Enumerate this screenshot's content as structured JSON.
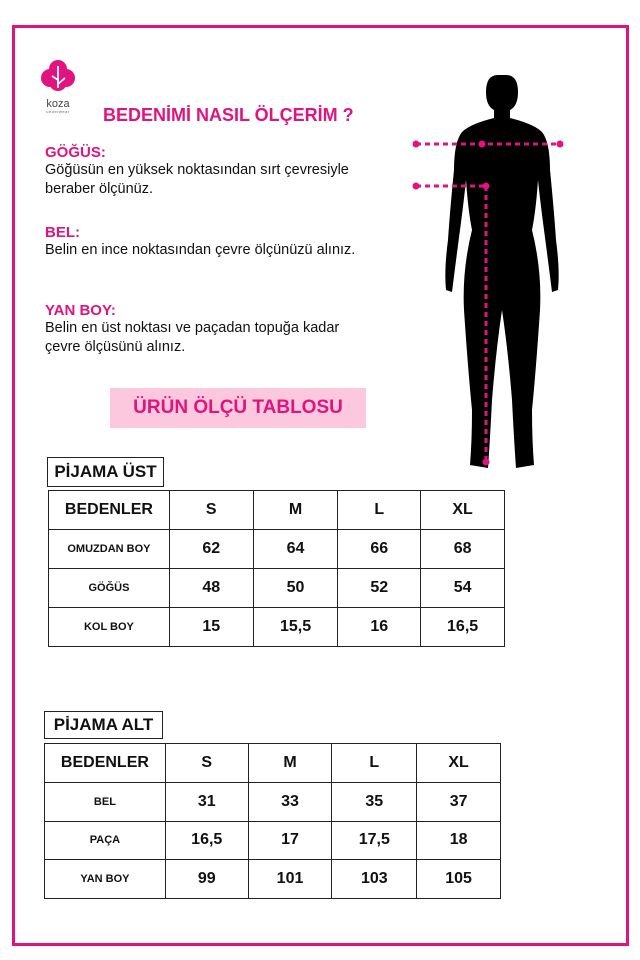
{
  "brand": {
    "name": "koza",
    "tagline": "underwear",
    "color": "#e0137f"
  },
  "title": "BEDENİMİ NASIL ÖLÇERİM ?",
  "sections": [
    {
      "heading": "GÖĞÜS:",
      "text": "Göğüsün en yüksek noktasından sırt çevresiyle beraber ölçünüz."
    },
    {
      "heading": "BEL:",
      "text": "Belin en ince noktasından çevre ölçünüzü alınız."
    },
    {
      "heading": "YAN BOY:",
      "text": "Belin en üst noktası ve paçadan topuğa kadar çevre ölçüsünü alınız."
    }
  ],
  "banner": "ÜRÜN ÖLÇÜ TABLOSU",
  "tables": [
    {
      "title": "PİJAMA ÜST",
      "header": [
        "BEDENLER",
        "S",
        "M",
        "L",
        "XL"
      ],
      "rows": [
        [
          "OMUZDAN BOY",
          "62",
          "64",
          "66",
          "68"
        ],
        [
          "GÖĞÜS",
          "48",
          "50",
          "52",
          "54"
        ],
        [
          "KOL BOY",
          "15",
          "15,5",
          "16",
          "16,5"
        ]
      ]
    },
    {
      "title": "PİJAMA ALT",
      "header": [
        "BEDENLER",
        "S",
        "M",
        "L",
        "XL"
      ],
      "rows": [
        [
          "BEL",
          "31",
          "33",
          "35",
          "37"
        ],
        [
          "PAÇA",
          "16,5",
          "17",
          "17,5",
          "18"
        ],
        [
          "YAN BOY",
          "99",
          "101",
          "103",
          "105"
        ]
      ]
    }
  ]
}
